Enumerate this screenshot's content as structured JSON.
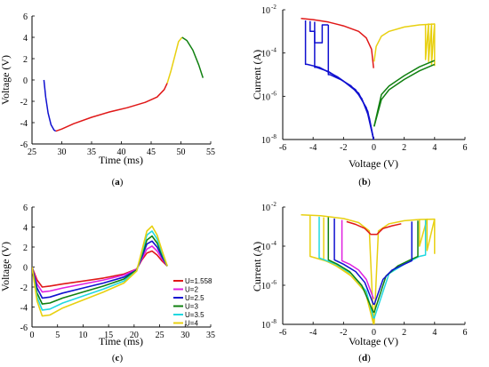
{
  "chart_data": [
    {
      "panel": "a",
      "caption": "(a)",
      "type": "line",
      "xlabel": "Time (ms)",
      "ylabel": "Voltage (V)",
      "xlim": [
        25,
        55
      ],
      "ylim": [
        -6,
        6
      ],
      "xticks": [
        25,
        30,
        35,
        40,
        45,
        50,
        55
      ],
      "yticks": [
        -6,
        -4,
        -2,
        0,
        2,
        4,
        6
      ],
      "series": [
        {
          "color": "#1010d0",
          "x": [
            27.0,
            27.3,
            27.7,
            28.2,
            28.7,
            29.0
          ],
          "y": [
            0.0,
            -1.6,
            -3.1,
            -4.2,
            -4.7,
            -4.8
          ]
        },
        {
          "color": "#e01818",
          "x": [
            29.0,
            30.0,
            32.0,
            35.0,
            38.0,
            41.0,
            44.0,
            46.0,
            47.2,
            47.7
          ],
          "y": [
            -4.8,
            -4.6,
            -4.1,
            -3.5,
            -3.0,
            -2.6,
            -2.1,
            -1.6,
            -0.9,
            -0.3
          ]
        },
        {
          "color": "#e8d010",
          "x": [
            47.7,
            48.3,
            49.0,
            49.6,
            50.2
          ],
          "y": [
            -0.3,
            0.8,
            2.3,
            3.6,
            4.0
          ]
        },
        {
          "color": "#108010",
          "x": [
            50.2,
            51.0,
            52.0,
            53.0,
            53.7
          ],
          "y": [
            4.0,
            3.7,
            2.8,
            1.4,
            0.2
          ]
        }
      ]
    },
    {
      "panel": "b",
      "caption": "(b)",
      "type": "line",
      "xlabel": "Voltage (V)",
      "ylabel": "Current (A)",
      "xlim": [
        -6,
        6
      ],
      "ylim": [
        1e-08,
        0.01
      ],
      "yscale": "log",
      "xticks": [
        -6,
        -4,
        -2,
        0,
        2,
        4,
        6
      ],
      "yticks": [
        1e-08,
        1e-06,
        0.0001,
        0.01
      ],
      "ytick_labels": [
        "10",
        "10",
        "10",
        "10"
      ],
      "ytick_exponents": [
        "-8",
        "-6",
        "-4",
        "-2"
      ],
      "series": [
        {
          "color": "#e01818",
          "x": [
            -4.8,
            -4.0,
            -3.0,
            -2.0,
            -1.0,
            -0.5,
            -0.15,
            -0.02
          ],
          "y": [
            0.004,
            0.0035,
            0.0027,
            0.0018,
            0.001,
            0.0005,
            0.00015,
            2e-05
          ]
        },
        {
          "color": "#e8d010",
          "x": [
            0.02,
            0.15,
            0.5,
            1.0,
            2.0,
            3.0,
            4.0
          ],
          "y": [
            4e-05,
            0.0002,
            0.0006,
            0.001,
            0.0016,
            0.002,
            0.0022
          ]
        },
        {
          "color": "#e8d010",
          "x": [
            3.4,
            3.4,
            3.6,
            3.6,
            3.8,
            3.8,
            4.0,
            4.0
          ],
          "y": [
            0.0022,
            5e-05,
            0.0022,
            4e-05,
            0.0022,
            3e-05,
            0.0022,
            2.5e-05
          ]
        },
        {
          "color": "#108010",
          "x": [
            0.02,
            0.5,
            1.0,
            2.0,
            3.0,
            4.0
          ],
          "y": [
            4e-08,
            7e-07,
            2e-06,
            6e-06,
            1.5e-05,
            3e-05
          ]
        },
        {
          "color": "#108010",
          "x": [
            0.02,
            0.5,
            1.0,
            2.0,
            3.0,
            4.0
          ],
          "y": [
            4e-08,
            1.2e-06,
            3e-06,
            9e-06,
            2.3e-05,
            4.5e-05
          ]
        },
        {
          "color": "#1010d0",
          "x": [
            -0.02,
            -0.3,
            -0.8,
            -1.5,
            -2.2,
            -2.9,
            -3.0,
            -3.0
          ],
          "y": [
            1e-08,
            1e-07,
            8e-07,
            3e-06,
            6e-06,
            1e-05,
            1e-05,
            0.002
          ]
        },
        {
          "color": "#1010d0",
          "x": [
            -0.02,
            -0.4,
            -1.0,
            -2.0,
            -3.0,
            -3.8,
            -3.9,
            -3.9
          ],
          "y": [
            1e-08,
            2e-07,
            1.4e-06,
            5e-06,
            1.4e-05,
            2.2e-05,
            2.2e-05,
            0.0028
          ]
        },
        {
          "color": "#1010d0",
          "x": [
            -0.02,
            -0.5,
            -1.2,
            -2.4,
            -3.6,
            -4.4,
            -4.5,
            -4.5
          ],
          "y": [
            1e-08,
            3e-07,
            2e-06,
            8e-06,
            2.2e-05,
            3e-05,
            3e-05,
            0.0032
          ]
        },
        {
          "color": "#1010d0",
          "x": [
            -3.0,
            -3.4,
            -3.4,
            -3.9,
            -3.9,
            -4.2,
            -4.2
          ],
          "y": [
            0.002,
            0.002,
            0.0003,
            0.0003,
            0.001,
            0.001,
            0.003
          ]
        }
      ]
    },
    {
      "panel": "c",
      "caption": "(c)",
      "type": "line",
      "xlabel": "Time (ms)",
      "ylabel": "Voltage (V)",
      "xlim": [
        0,
        35
      ],
      "ylim": [
        -6,
        6
      ],
      "xticks": [
        0,
        5,
        10,
        15,
        20,
        25,
        30,
        35
      ],
      "yticks": [
        -6,
        -4,
        -2,
        0,
        2,
        4,
        6
      ],
      "x": [
        0,
        1.0,
        2.0,
        3.5,
        6,
        10,
        14,
        18,
        20.5,
        21.5,
        22.5,
        23.5,
        24.5,
        25.5,
        26.5
      ],
      "series": [
        {
          "name": "U=1.558",
          "color": "#e01818",
          "y": [
            0,
            -1.3,
            -2.0,
            -1.9,
            -1.7,
            -1.4,
            -1.1,
            -0.7,
            -0.2,
            0.7,
            1.4,
            1.6,
            1.2,
            0.6,
            0.1
          ]
        },
        {
          "name": "U=2",
          "color": "#e020e0",
          "y": [
            0,
            -1.7,
            -2.5,
            -2.4,
            -2.1,
            -1.7,
            -1.3,
            -0.8,
            -0.2,
            0.8,
            1.8,
            2.1,
            1.6,
            0.8,
            0.1
          ]
        },
        {
          "name": "U=2.5",
          "color": "#1010d0",
          "y": [
            0,
            -2.1,
            -3.1,
            -3.0,
            -2.6,
            -2.1,
            -1.6,
            -1.0,
            -0.3,
            1.0,
            2.3,
            2.6,
            2.0,
            1.0,
            0.1
          ]
        },
        {
          "name": "U=3",
          "color": "#108010",
          "y": [
            0,
            -2.6,
            -3.7,
            -3.6,
            -3.1,
            -2.5,
            -1.9,
            -1.2,
            -0.3,
            1.2,
            2.7,
            3.1,
            2.4,
            1.2,
            0.1
          ]
        },
        {
          "name": "U=3.5",
          "color": "#20d8e0",
          "y": [
            0,
            -3.0,
            -4.3,
            -4.2,
            -3.6,
            -2.9,
            -2.2,
            -1.4,
            -0.4,
            1.4,
            3.2,
            3.6,
            2.8,
            1.4,
            0.1
          ]
        },
        {
          "name": "U=4",
          "color": "#e8d010",
          "y": [
            0,
            -3.4,
            -4.9,
            -4.8,
            -4.1,
            -3.3,
            -2.5,
            -1.6,
            -0.4,
            1.6,
            3.6,
            4.1,
            3.2,
            1.6,
            0.1
          ]
        }
      ]
    },
    {
      "panel": "d",
      "caption": "(d)",
      "type": "line",
      "xlabel": "Voltage (V)",
      "ylabel": "Current (A)",
      "xlim": [
        -6,
        6
      ],
      "ylim": [
        1e-08,
        0.01
      ],
      "yscale": "log",
      "xticks": [
        -6,
        -4,
        -2,
        0,
        2,
        4,
        6
      ],
      "yticks": [
        1e-08,
        1e-06,
        0.0001,
        0.01
      ],
      "ytick_labels": [
        "10",
        "10",
        "10",
        "10"
      ],
      "ytick_exponents": [
        "-8",
        "-6",
        "-4",
        "-2"
      ],
      "series": [
        {
          "color": "#e8d010",
          "x": [
            -4.8,
            -3.5,
            -2.0,
            -1.0,
            -0.3,
            -0.02,
            0.02,
            0.3,
            1.0,
            2.0,
            3.0,
            4.0
          ],
          "y": [
            0.004,
            0.0036,
            0.0026,
            0.0016,
            0.0006,
            1e-08,
            1e-08,
            0.0006,
            0.0014,
            0.002,
            0.0023,
            0.0024
          ]
        },
        {
          "color": "#e8d010",
          "x": [
            -0.02,
            -0.5,
            -1.5,
            -2.5,
            -3.3,
            -3.3
          ],
          "y": [
            1e-08,
            4e-07,
            3e-06,
            1e-05,
            2e-05,
            0.003
          ]
        },
        {
          "color": "#e8d010",
          "x": [
            -0.02,
            -0.6,
            -1.8,
            -3.0,
            -4.2,
            -4.2
          ],
          "y": [
            1e-08,
            6e-07,
            5e-06,
            1.6e-05,
            3e-05,
            0.0035
          ]
        },
        {
          "color": "#e8d010",
          "x": [
            3.0,
            3.0,
            3.5,
            3.5,
            4.0,
            4.0
          ],
          "y": [
            0.0023,
            0.0001,
            0.0024,
            6e-05,
            0.0024,
            4e-05
          ]
        },
        {
          "color": "#20d8e0",
          "x": [
            -0.02,
            -0.5,
            -1.5,
            -2.5,
            -3.6,
            -3.6
          ],
          "y": [
            2e-08,
            5e-07,
            4e-06,
            1.2e-05,
            2.5e-05,
            0.0032
          ]
        },
        {
          "color": "#20d8e0",
          "x": [
            0.02,
            1.0,
            2.0,
            3.0,
            3.4,
            3.4
          ],
          "y": [
            2e-08,
            4e-06,
            1.2e-05,
            3e-05,
            3.5e-05,
            0.0022
          ]
        },
        {
          "color": "#108010",
          "x": [
            -0.02,
            -0.8,
            -1.6,
            -2.4,
            -3.0,
            -3.0
          ],
          "y": [
            4e-08,
            1e-06,
            5e-06,
            1.2e-05,
            2e-05,
            0.003
          ]
        },
        {
          "color": "#108010",
          "x": [
            0.02,
            0.8,
            1.6,
            2.4,
            2.9,
            2.9
          ],
          "y": [
            4e-08,
            3e-06,
            1e-05,
            2e-05,
            3e-05,
            0.002
          ]
        },
        {
          "color": "#1010d0",
          "x": [
            -0.02,
            -0.6,
            -1.2,
            -2.0,
            -2.6,
            -2.6
          ],
          "y": [
            1e-07,
            1.4e-06,
            5e-06,
            1.2e-05,
            2e-05,
            0.0026
          ]
        },
        {
          "color": "#1010d0",
          "x": [
            0.02,
            0.6,
            1.2,
            2.0,
            2.5,
            2.5
          ],
          "y": [
            1e-07,
            2e-06,
            6e-06,
            1.2e-05,
            1.8e-05,
            0.0018
          ]
        },
        {
          "color": "#e020e0",
          "x": [
            -0.02,
            -0.5,
            -1.0,
            -1.6,
            -2.1,
            -2.1
          ],
          "y": [
            2e-07,
            2e-06,
            6e-06,
            1.2e-05,
            1.8e-05,
            0.0022
          ]
        },
        {
          "color": "#e01818",
          "x": [
            -1.8,
            -1.2,
            -0.6,
            -0.2,
            0.2,
            0.6,
            1.2,
            1.8
          ],
          "y": [
            0.0018,
            0.0013,
            0.0008,
            0.0004,
            0.0004,
            0.0008,
            0.0011,
            0.0014
          ]
        }
      ]
    }
  ]
}
